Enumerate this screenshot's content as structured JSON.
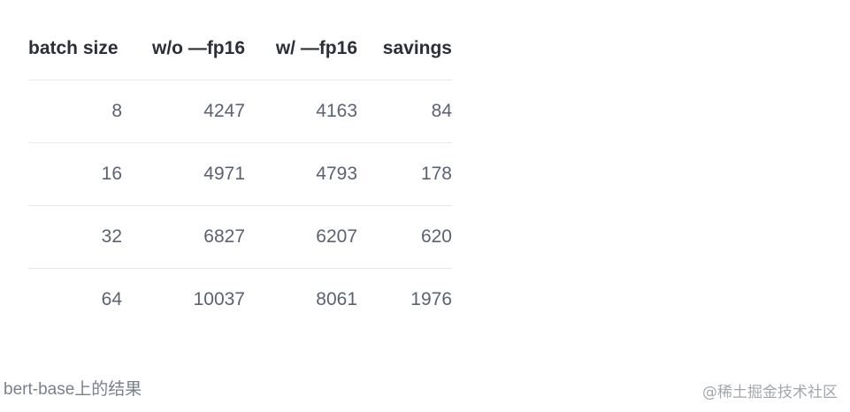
{
  "table": {
    "headers": [
      "batch size",
      "w/o —fp16",
      "w/ —fp16",
      "savings"
    ],
    "rows": [
      [
        "8",
        "4247",
        "4163",
        "84"
      ],
      [
        "16",
        "4971",
        "4793",
        "178"
      ],
      [
        "32",
        "6827",
        "6207",
        "620"
      ],
      [
        "64",
        "10037",
        "8061",
        "1976"
      ]
    ]
  },
  "caption": "bert-base上的结果",
  "watermark": "@稀土掘金技术社区"
}
